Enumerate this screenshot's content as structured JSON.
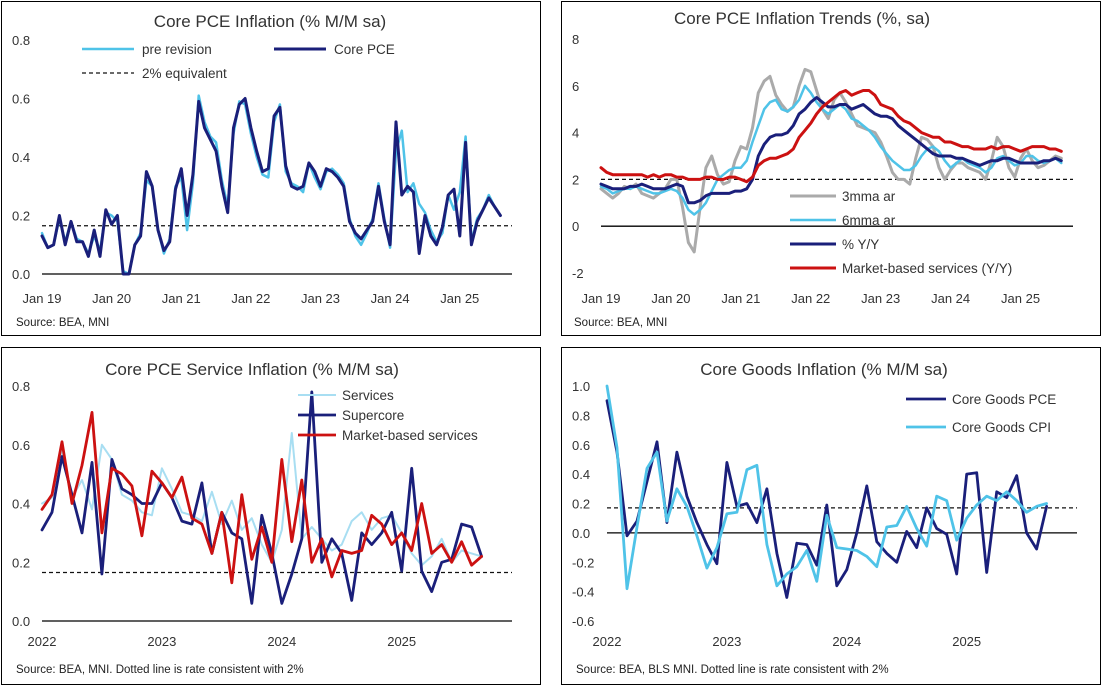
{
  "chart_data": [
    {
      "id": "p1",
      "type": "line",
      "title": "Core PCE Inflation (% M/M sa)",
      "source": "Source: BEA, MNI",
      "ylim": [
        0,
        0.8
      ],
      "yticks": [
        "0.0",
        "0.2",
        "0.4",
        "0.6",
        "0.8"
      ],
      "xstart": 2019.0,
      "xend": 2025.75,
      "xticks": [
        "Jan 19",
        "Jan 20",
        "Jan 21",
        "Jan 22",
        "Jan 23",
        "Jan 24",
        "Jan 25"
      ],
      "reference_line": {
        "label": "2% equivalent",
        "value": 0.165
      },
      "series": [
        {
          "name": "pre revision",
          "color": "#4fc3e8",
          "width": 2.5,
          "values": [
            0.14,
            0.09,
            0.1,
            0.19,
            0.11,
            0.18,
            0.12,
            0.11,
            0.07,
            0.13,
            0.08,
            0.21,
            0.2,
            0.18,
            0.01,
            -0.08,
            0.1,
            0.14,
            0.32,
            0.3,
            0.15,
            0.07,
            0.12,
            0.3,
            0.33,
            0.15,
            0.31,
            0.61,
            0.52,
            0.47,
            0.45,
            0.32,
            0.23,
            0.48,
            0.59,
            0.58,
            0.48,
            0.4,
            0.34,
            0.33,
            0.52,
            0.58,
            0.35,
            0.31,
            0.3,
            0.28,
            0.38,
            0.33,
            0.29,
            0.35,
            0.36,
            0.34,
            0.31,
            0.19,
            0.13,
            0.1,
            0.14,
            0.19,
            0.31,
            0.19,
            0.09,
            0.42,
            0.49,
            0.28,
            0.31,
            0.24,
            0.21,
            0.15,
            0.11,
            0.14,
            0.27,
            0.22,
            0.28,
            0.47,
            0.11,
            0.19,
            0.22,
            0.27,
            0.23,
            0.2
          ]
        },
        {
          "name": "Core PCE",
          "color": "#1a1f7a",
          "width": 3,
          "values": [
            0.13,
            0.09,
            0.1,
            0.2,
            0.1,
            0.18,
            0.11,
            0.11,
            0.06,
            0.15,
            0.06,
            0.22,
            0.17,
            0.2,
            0.0,
            -0.08,
            0.1,
            0.13,
            0.35,
            0.3,
            0.15,
            0.08,
            0.11,
            0.29,
            0.36,
            0.2,
            0.34,
            0.59,
            0.5,
            0.46,
            0.42,
            0.3,
            0.21,
            0.5,
            0.58,
            0.6,
            0.5,
            0.42,
            0.35,
            0.36,
            0.54,
            0.57,
            0.37,
            0.3,
            0.29,
            0.3,
            0.38,
            0.35,
            0.3,
            0.36,
            0.35,
            0.33,
            0.3,
            0.18,
            0.14,
            0.12,
            0.15,
            0.18,
            0.3,
            0.18,
            0.1,
            0.52,
            0.27,
            0.3,
            0.28,
            0.07,
            0.2,
            0.13,
            0.1,
            0.16,
            0.27,
            0.29,
            0.13,
            0.45,
            0.1,
            0.18,
            0.22,
            0.26,
            0.23,
            0.2
          ]
        }
      ]
    },
    {
      "id": "p2",
      "type": "line",
      "title": "Core PCE Inflation Trends (%, sa)",
      "source": "Source: BEA, MNI",
      "ylim": [
        -2,
        8
      ],
      "yticks": [
        "-2",
        "0",
        "2",
        "4",
        "6",
        "8"
      ],
      "xstart": 2019.0,
      "xend": 2025.75,
      "xticks": [
        "Jan 19",
        "Jan 20",
        "Jan 21",
        "Jan 22",
        "Jan 23",
        "Jan 24",
        "Jan 25"
      ],
      "reference_line": {
        "value": 2.0
      },
      "series": [
        {
          "name": "3mma ar",
          "color": "#aaaaaa",
          "width": 3,
          "values": [
            1.6,
            1.4,
            1.2,
            1.4,
            1.7,
            1.6,
            1.8,
            1.4,
            1.3,
            1.2,
            1.4,
            1.6,
            2.0,
            2.0,
            0.8,
            -0.7,
            -1.1,
            0.8,
            2.5,
            3.0,
            2.2,
            1.8,
            1.9,
            2.8,
            3.4,
            3.3,
            4.2,
            5.7,
            6.2,
            6.4,
            5.6,
            5.2,
            4.9,
            5.1,
            6.0,
            6.7,
            6.6,
            5.8,
            5.0,
            4.6,
            5.4,
            5.7,
            5.3,
            4.8,
            4.3,
            4.2,
            4.1,
            4.0,
            3.6,
            3.0,
            2.3,
            2.0,
            2.0,
            1.8,
            2.9,
            3.8,
            3.7,
            3.4,
            2.5,
            2.0,
            2.4,
            2.7,
            2.7,
            2.5,
            2.4,
            2.3,
            2.0,
            2.8,
            3.8,
            3.4,
            2.5,
            2.1,
            2.9,
            3.3,
            2.8,
            2.5,
            2.6,
            2.8,
            3.0,
            2.9
          ]
        },
        {
          "name": "6mma ar",
          "color": "#4fc3e8",
          "width": 2.5,
          "values": [
            1.7,
            1.6,
            1.4,
            1.5,
            1.6,
            1.6,
            1.7,
            1.6,
            1.5,
            1.4,
            1.4,
            1.5,
            1.6,
            1.5,
            1.2,
            0.7,
            0.5,
            0.7,
            1.0,
            1.5,
            2.0,
            2.2,
            2.4,
            2.5,
            2.5,
            2.8,
            3.6,
            4.3,
            5.0,
            5.3,
            5.4,
            5.0,
            4.9,
            5.1,
            5.4,
            6.0,
            5.7,
            5.3,
            5.0,
            4.8,
            5.0,
            5.2,
            5.0,
            4.6,
            4.5,
            4.3,
            4.1,
            3.8,
            3.4,
            3.1,
            2.8,
            2.6,
            2.4,
            2.4,
            2.6,
            3.0,
            3.3,
            3.4,
            3.2,
            2.8,
            2.5,
            2.7,
            2.9,
            2.7,
            2.6,
            2.5,
            2.3,
            2.5,
            2.9,
            3.0,
            2.8,
            2.6,
            2.7,
            3.0,
            3.0,
            2.8,
            2.7,
            2.8,
            2.9,
            2.7
          ]
        },
        {
          "name": "% Y/Y",
          "color": "#1a1f7a",
          "width": 3,
          "values": [
            1.8,
            1.7,
            1.6,
            1.6,
            1.6,
            1.7,
            1.7,
            1.8,
            1.7,
            1.6,
            1.6,
            1.6,
            1.7,
            1.8,
            1.7,
            1.0,
            1.0,
            1.1,
            1.3,
            1.4,
            1.4,
            1.4,
            1.4,
            1.5,
            1.5,
            1.6,
            2.0,
            3.0,
            3.5,
            3.8,
            3.9,
            3.9,
            4.0,
            4.3,
            4.8,
            5.0,
            5.3,
            5.5,
            5.3,
            5.1,
            5.1,
            5.2,
            5.2,
            5.0,
            5.1,
            5.2,
            5.0,
            4.8,
            4.7,
            4.7,
            4.6,
            4.3,
            4.1,
            3.9,
            3.7,
            3.5,
            3.3,
            3.1,
            3.0,
            3.0,
            3.0,
            2.9,
            2.9,
            2.8,
            2.7,
            2.6,
            2.7,
            2.8,
            2.8,
            2.9,
            2.9,
            2.8,
            2.7,
            2.7,
            2.7,
            2.7,
            2.8,
            2.8,
            2.9,
            2.8
          ]
        },
        {
          "name": "Market-based services (Y/Y)",
          "color": "#cc1111",
          "width": 3,
          "values": [
            2.5,
            2.3,
            2.2,
            2.2,
            2.2,
            2.2,
            2.2,
            2.2,
            2.1,
            2.2,
            2.1,
            2.2,
            2.2,
            2.1,
            2.1,
            2.0,
            2.0,
            2.0,
            2.1,
            2.1,
            2.0,
            2.0,
            2.1,
            2.1,
            2.0,
            1.9,
            2.1,
            2.6,
            2.8,
            2.9,
            2.9,
            3.0,
            3.1,
            3.3,
            3.8,
            4.1,
            4.4,
            4.8,
            5.1,
            5.3,
            5.5,
            5.7,
            5.8,
            5.6,
            5.7,
            5.8,
            5.8,
            5.6,
            5.2,
            5.1,
            5.0,
            4.7,
            4.5,
            4.4,
            4.2,
            4.0,
            3.9,
            3.8,
            3.8,
            3.6,
            3.6,
            3.5,
            3.4,
            3.4,
            3.3,
            3.3,
            3.3,
            3.4,
            3.3,
            3.4,
            3.4,
            3.3,
            3.2,
            3.3,
            3.4,
            3.4,
            3.4,
            3.3,
            3.3,
            3.2
          ]
        }
      ]
    },
    {
      "id": "p3",
      "type": "line",
      "title": "Core PCE Service Inflation (% M/M sa)",
      "source": "Source: BEA, MNI. Dotted line is rate consistent with 2%",
      "ylim": [
        0,
        0.8
      ],
      "yticks": [
        "0.0",
        "0.2",
        "0.4",
        "0.6",
        "0.8"
      ],
      "xstart": 2022.0,
      "xend": 2025.92,
      "xticks": [
        "2022",
        "2023",
        "2024",
        "2025"
      ],
      "reference_line": {
        "value": 0.165
      },
      "series": [
        {
          "name": "Services",
          "color": "#a8def2",
          "width": 2,
          "values": [
            0.4,
            0.42,
            0.58,
            0.42,
            0.48,
            0.38,
            0.6,
            0.55,
            0.43,
            0.41,
            0.37,
            0.36,
            0.52,
            0.45,
            0.37,
            0.36,
            0.34,
            0.44,
            0.33,
            0.41,
            0.31,
            0.35,
            0.26,
            0.2,
            0.31,
            0.64,
            0.28,
            0.32,
            0.28,
            0.24,
            0.26,
            0.34,
            0.37,
            0.31,
            0.35,
            0.36,
            0.3,
            0.23,
            0.19,
            0.22,
            0.28,
            0.2,
            0.24,
            0.23,
            0.22
          ]
        },
        {
          "name": "Supercore",
          "color": "#1a1f7a",
          "width": 2.8,
          "values": [
            0.31,
            0.37,
            0.56,
            0.43,
            0.3,
            0.54,
            0.16,
            0.55,
            0.45,
            0.43,
            0.4,
            0.4,
            0.47,
            0.42,
            0.34,
            0.33,
            0.47,
            0.23,
            0.37,
            0.3,
            0.28,
            0.06,
            0.36,
            0.23,
            0.06,
            0.16,
            0.28,
            0.78,
            0.2,
            0.28,
            0.23,
            0.07,
            0.3,
            0.26,
            0.3,
            0.37,
            0.17,
            0.52,
            0.17,
            0.1,
            0.2,
            0.21,
            0.33,
            0.32,
            0.22
          ]
        },
        {
          "name": "Market-based services",
          "color": "#cc1111",
          "width": 2.8,
          "values": [
            0.38,
            0.43,
            0.61,
            0.4,
            0.53,
            0.71,
            0.3,
            0.52,
            0.5,
            0.46,
            0.29,
            0.51,
            0.47,
            0.42,
            0.49,
            0.35,
            0.33,
            0.23,
            0.37,
            0.13,
            0.43,
            0.21,
            0.32,
            0.2,
            0.55,
            0.27,
            0.48,
            0.2,
            0.28,
            0.15,
            0.24,
            0.23,
            0.24,
            0.36,
            0.33,
            0.26,
            0.3,
            0.24,
            0.4,
            0.23,
            0.26,
            0.2,
            0.27,
            0.19,
            0.22
          ]
        }
      ]
    },
    {
      "id": "p4",
      "type": "line",
      "title": "Core Goods Inflation (% M/M sa)",
      "source": "Source: BEA, BLS MNI. Dotted line is rate consistent with 2%",
      "ylim": [
        -0.6,
        1.0
      ],
      "yticks": [
        "-0.6",
        "-0.4",
        "-0.2",
        "0.0",
        "0.2",
        "0.4",
        "0.6",
        "0.8",
        "1.0"
      ],
      "xstart": 2022.0,
      "xend": 2025.92,
      "xticks": [
        "2022",
        "2023",
        "2024",
        "2025"
      ],
      "reference_line": {
        "value": 0.17
      },
      "series": [
        {
          "name": "Core Goods PCE",
          "color": "#1a1f7a",
          "width": 2.8,
          "values": [
            0.9,
            0.55,
            -0.02,
            0.08,
            0.35,
            0.62,
            0.07,
            0.55,
            0.25,
            0.07,
            -0.08,
            -0.21,
            0.48,
            0.18,
            0.2,
            0.07,
            0.3,
            -0.14,
            -0.44,
            -0.07,
            -0.08,
            -0.22,
            0.19,
            -0.36,
            -0.25,
            0.0,
            0.32,
            -0.06,
            -0.14,
            -0.2,
            0.01,
            -0.1,
            0.17,
            0.03,
            -0.01,
            -0.28,
            0.4,
            0.41,
            -0.27,
            0.28,
            0.24,
            0.39,
            0.0,
            -0.11,
            0.18
          ]
        },
        {
          "name": "Core Goods CPI",
          "color": "#4fc3e8",
          "width": 2.8,
          "values": [
            1.0,
            0.58,
            -0.38,
            0.04,
            0.44,
            0.55,
            0.08,
            0.3,
            0.18,
            -0.02,
            -0.24,
            -0.1,
            0.13,
            0.14,
            0.43,
            0.46,
            -0.08,
            -0.36,
            -0.28,
            -0.23,
            -0.12,
            -0.33,
            0.12,
            -0.1,
            -0.11,
            -0.12,
            -0.16,
            -0.23,
            0.04,
            0.05,
            0.18,
            0.03,
            -0.09,
            0.25,
            0.22,
            -0.05,
            0.1,
            0.19,
            0.25,
            0.22,
            0.28,
            0.22,
            0.14,
            0.18,
            0.2
          ]
        }
      ]
    }
  ]
}
